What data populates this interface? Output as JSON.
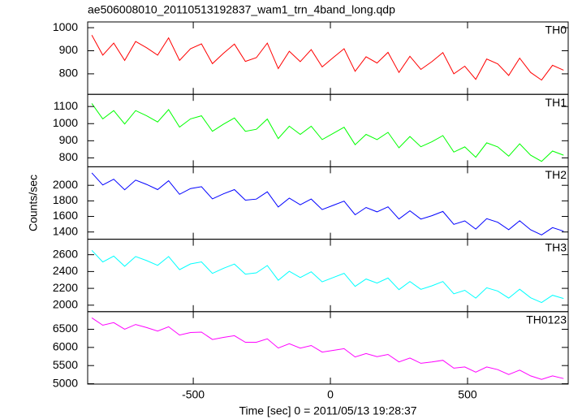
{
  "chart_data": {
    "type": "line",
    "title": "ae506008010_20110513192837_wam1_trn_4band_long.qdp",
    "xlabel": "Time [sec] 0 = 2011/05/13 19:28:37",
    "ylabel": "Counts/sec",
    "xlim": [
      -885,
      867
    ],
    "xticks": [
      -500,
      0,
      500
    ],
    "x": [
      -870,
      -830,
      -790,
      -750,
      -710,
      -670,
      -630,
      -590,
      -550,
      -510,
      -470,
      -430,
      -390,
      -350,
      -310,
      -270,
      -230,
      -190,
      -150,
      -110,
      -70,
      -30,
      10,
      50,
      90,
      130,
      170,
      210,
      250,
      290,
      330,
      370,
      410,
      450,
      490,
      530,
      570,
      610,
      650,
      690,
      730,
      770,
      810,
      850
    ],
    "panels": [
      {
        "name": "TH0",
        "color": "#ff0000",
        "ylim": [
          711,
          1025
        ],
        "yticks": [
          800,
          900,
          1000
        ],
        "values": [
          968,
          881,
          933,
          858,
          940,
          913,
          881,
          956,
          858,
          909,
          930,
          844,
          889,
          929,
          854,
          870,
          933,
          823,
          898,
          853,
          905,
          830,
          870,
          909,
          811,
          874,
          847,
          893,
          806,
          876,
          819,
          853,
          892,
          800,
          833,
          776,
          864,
          843,
          793,
          868,
          806,
          773,
          837,
          816
        ]
      },
      {
        "name": "TH1",
        "color": "#00ff00",
        "ylim": [
          748,
          1171
        ],
        "yticks": [
          800,
          900,
          1000,
          1100
        ],
        "values": [
          1118,
          1028,
          1076,
          998,
          1076,
          1046,
          1010,
          1082,
          980,
          1028,
          1046,
          955,
          997,
          1033,
          955,
          967,
          1027,
          913,
          985,
          937,
          985,
          907,
          943,
          979,
          877,
          937,
          907,
          949,
          859,
          925,
          865,
          894,
          930,
          834,
          864,
          804,
          888,
          864,
          810,
          882,
          816,
          780,
          840,
          816
        ]
      },
      {
        "name": "TH2",
        "color": "#0000ff",
        "ylim": [
          1307,
          2238
        ],
        "yticks": [
          1400,
          1600,
          1800,
          2000
        ],
        "values": [
          2160,
          2004,
          2078,
          1943,
          2067,
          2011,
          1945,
          2059,
          1884,
          1958,
          1982,
          1826,
          1890,
          1945,
          1809,
          1823,
          1917,
          1721,
          1835,
          1750,
          1824,
          1688,
          1742,
          1796,
          1621,
          1715,
          1659,
          1723,
          1567,
          1672,
          1566,
          1610,
          1664,
          1498,
          1543,
          1437,
          1571,
          1525,
          1429,
          1544,
          1428,
          1362,
          1456,
          1410
        ]
      },
      {
        "name": "TH3",
        "color": "#00ffff",
        "ylim": [
          1923,
          2784
        ],
        "yticks": [
          2000,
          2200,
          2400,
          2600
        ],
        "values": [
          2652,
          2514,
          2583,
          2463,
          2578,
          2530,
          2473,
          2578,
          2422,
          2491,
          2515,
          2378,
          2438,
          2489,
          2369,
          2384,
          2471,
          2297,
          2403,
          2328,
          2397,
          2277,
          2328,
          2379,
          2223,
          2311,
          2263,
          2323,
          2185,
          2281,
          2188,
          2230,
          2281,
          2135,
          2177,
          2084,
          2207,
          2168,
          2084,
          2189,
          2088,
          2031,
          2118,
          2079
        ]
      },
      {
        "name": "TH0123",
        "color": "#ff00ff",
        "ylim": [
          4990,
          6985
        ],
        "yticks": [
          5000,
          5500,
          6000,
          6500
        ],
        "values": [
          6816,
          6611,
          6682,
          6501,
          6632,
          6547,
          6450,
          6569,
          6340,
          6411,
          6422,
          6217,
          6276,
          6323,
          6142,
          6141,
          6236,
          5983,
          6102,
          5981,
          6052,
          5871,
          5918,
          5965,
          5737,
          5832,
          5747,
          5806,
          5601,
          5708,
          5563,
          5598,
          5645,
          5428,
          5463,
          5318,
          5461,
          5388,
          5255,
          5374,
          5217,
          5120,
          5215,
          5142
        ]
      }
    ]
  }
}
